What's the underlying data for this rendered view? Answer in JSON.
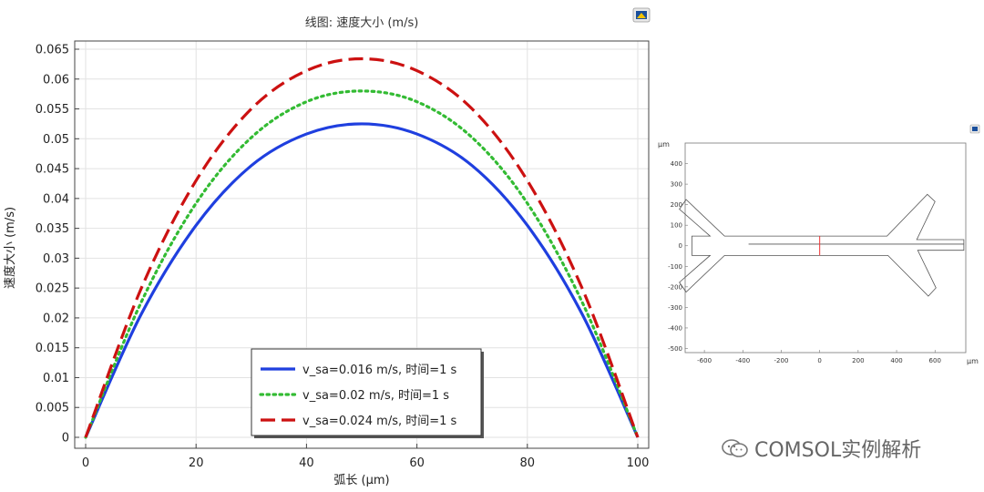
{
  "chart_data": [
    {
      "type": "line",
      "title": "线图: 速度大小 (m/s)",
      "xlabel": "弧长 (μm)",
      "ylabel": "速度大小 (m/s)",
      "xlim": [
        0,
        100
      ],
      "ylim": [
        0,
        0.065
      ],
      "xticks": [
        0,
        20,
        40,
        60,
        80,
        100
      ],
      "yticks": [
        0,
        0.005,
        0.01,
        0.015,
        0.02,
        0.025,
        0.03,
        0.035,
        0.04,
        0.045,
        0.05,
        0.055,
        0.06,
        0.065
      ],
      "ytick_labels": [
        "0",
        "0.005",
        "0.01",
        "0.015",
        "0.02",
        "0.025",
        "0.03",
        "0.035",
        "0.04",
        "0.045",
        "0.05",
        "0.055",
        "0.06",
        "0.065"
      ],
      "grid": true,
      "legend_position": "bottom-center",
      "x": [
        0,
        10,
        20,
        30,
        40,
        50,
        60,
        70,
        80,
        90,
        100
      ],
      "series": [
        {
          "name": "v_sa=0.016 m/s, 时间=1 s",
          "color": "#1f3fdf",
          "style": "solid",
          "values": [
            0,
            0.0205,
            0.0355,
            0.0455,
            0.0508,
            0.0525,
            0.0508,
            0.0455,
            0.0355,
            0.0205,
            0
          ]
        },
        {
          "name": "v_sa=0.02 m/s, 时间=1 s",
          "color": "#33bb33",
          "style": "dotted",
          "values": [
            0,
            0.0225,
            0.0392,
            0.0502,
            0.0562,
            0.058,
            0.0562,
            0.0502,
            0.0392,
            0.0225,
            0
          ]
        },
        {
          "name": "v_sa=0.024 m/s, 时间=1 s",
          "color": "#cc1111",
          "style": "dashed",
          "values": [
            0,
            0.0248,
            0.043,
            0.055,
            0.0614,
            0.0634,
            0.0614,
            0.055,
            0.043,
            0.0248,
            0
          ]
        }
      ]
    },
    {
      "type": "geometry",
      "units_label": "μm",
      "xlim": [
        -700,
        760
      ],
      "ylim": [
        -520,
        500
      ],
      "xticks": [
        -600,
        -400,
        -200,
        0,
        200,
        400,
        600
      ],
      "yticks": [
        400,
        300,
        200,
        100,
        0,
        -100,
        -200,
        -300,
        -400,
        -500
      ],
      "outline_color": "#555555",
      "cutline_color": "#ee3333"
    }
  ],
  "watermark": {
    "text": "COMSOL实例解析"
  }
}
